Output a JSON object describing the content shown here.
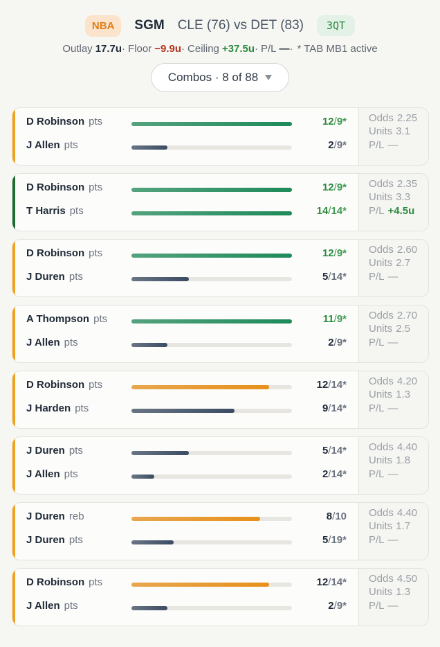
{
  "header": {
    "league": "NBA",
    "type": "SGM",
    "matchup": "CLE (76) vs DET (83)",
    "period": "3QT"
  },
  "summary": {
    "separator": "·",
    "items": [
      {
        "label": "Outlay",
        "value": "17.7u",
        "color": "#1f2a37"
      },
      {
        "label": "Floor",
        "value": "−9.9u",
        "color": "#b8321f"
      },
      {
        "label": "Ceiling",
        "value": "+37.5u",
        "color": "#2b8a3e"
      },
      {
        "label": "P/L",
        "value": "—",
        "color": "#1f2a37"
      }
    ],
    "note": "* TAB MB1 active"
  },
  "combos_button": "Combos · 8 of 88",
  "labels": {
    "odds": "Odds",
    "units": "Units",
    "pl": "P/L",
    "fraction_separator": "/"
  },
  "combos": [
    {
      "accent": "#f0a21c",
      "odds": "2.25",
      "units": "3.1",
      "pl": "—",
      "pl_color": "#9aa0a6",
      "legs": [
        {
          "player": "D Robinson",
          "stat": "pts",
          "current": 12,
          "target": 9,
          "star": "*",
          "color": "#1e8a5a"
        },
        {
          "player": "J Allen",
          "stat": "pts",
          "current": 2,
          "target": 9,
          "star": "*",
          "color": "#3b4c63"
        }
      ]
    },
    {
      "accent": "#1e6a33",
      "odds": "2.35",
      "units": "3.3",
      "pl": "+4.5u",
      "pl_color": "#2b8a3e",
      "legs": [
        {
          "player": "D Robinson",
          "stat": "pts",
          "current": 12,
          "target": 9,
          "star": "*",
          "color": "#1e8a5a"
        },
        {
          "player": "T Harris",
          "stat": "pts",
          "current": 14,
          "target": 14,
          "star": "*",
          "color": "#1e8a5a"
        }
      ]
    },
    {
      "accent": "#f0a21c",
      "odds": "2.60",
      "units": "2.7",
      "pl": "—",
      "pl_color": "#9aa0a6",
      "legs": [
        {
          "player": "D Robinson",
          "stat": "pts",
          "current": 12,
          "target": 9,
          "star": "*",
          "color": "#1e8a5a"
        },
        {
          "player": "J Duren",
          "stat": "pts",
          "current": 5,
          "target": 14,
          "star": "*",
          "color": "#3b4c63"
        }
      ]
    },
    {
      "accent": "#f0a21c",
      "odds": "2.70",
      "units": "2.5",
      "pl": "—",
      "pl_color": "#9aa0a6",
      "legs": [
        {
          "player": "A Thompson",
          "stat": "pts",
          "current": 11,
          "target": 9,
          "star": "*",
          "color": "#1e8a5a"
        },
        {
          "player": "J Allen",
          "stat": "pts",
          "current": 2,
          "target": 9,
          "star": "*",
          "color": "#3b4c63"
        }
      ]
    },
    {
      "accent": "#f0a21c",
      "odds": "4.20",
      "units": "1.3",
      "pl": "—",
      "pl_color": "#9aa0a6",
      "legs": [
        {
          "player": "D Robinson",
          "stat": "pts",
          "current": 12,
          "target": 14,
          "star": "*",
          "color": "#e8901a"
        },
        {
          "player": "J Harden",
          "stat": "pts",
          "current": 9,
          "target": 14,
          "star": "*",
          "color": "#3b4c63"
        }
      ]
    },
    {
      "accent": "#f0a21c",
      "odds": "4.40",
      "units": "1.8",
      "pl": "—",
      "pl_color": "#9aa0a6",
      "legs": [
        {
          "player": "J Duren",
          "stat": "pts",
          "current": 5,
          "target": 14,
          "star": "*",
          "color": "#3b4c63"
        },
        {
          "player": "J Allen",
          "stat": "pts",
          "current": 2,
          "target": 14,
          "star": "*",
          "color": "#3b4c63"
        }
      ]
    },
    {
      "accent": "#f0a21c",
      "odds": "4.40",
      "units": "1.7",
      "pl": "—",
      "pl_color": "#9aa0a6",
      "legs": [
        {
          "player": "J Duren",
          "stat": "reb",
          "current": 8,
          "target": 10,
          "color": "#e8901a"
        },
        {
          "player": "J Duren",
          "stat": "pts",
          "current": 5,
          "target": 19,
          "star": "*",
          "color": "#3b4c63"
        }
      ]
    },
    {
      "accent": "#f0a21c",
      "odds": "4.50",
      "units": "1.3",
      "pl": "—",
      "pl_color": "#9aa0a6",
      "legs": [
        {
          "player": "D Robinson",
          "stat": "pts",
          "current": 12,
          "target": 14,
          "star": "*",
          "color": "#e8901a"
        },
        {
          "player": "J Allen",
          "stat": "pts",
          "current": 2,
          "target": 9,
          "star": "*",
          "color": "#3b4c63"
        }
      ]
    }
  ]
}
